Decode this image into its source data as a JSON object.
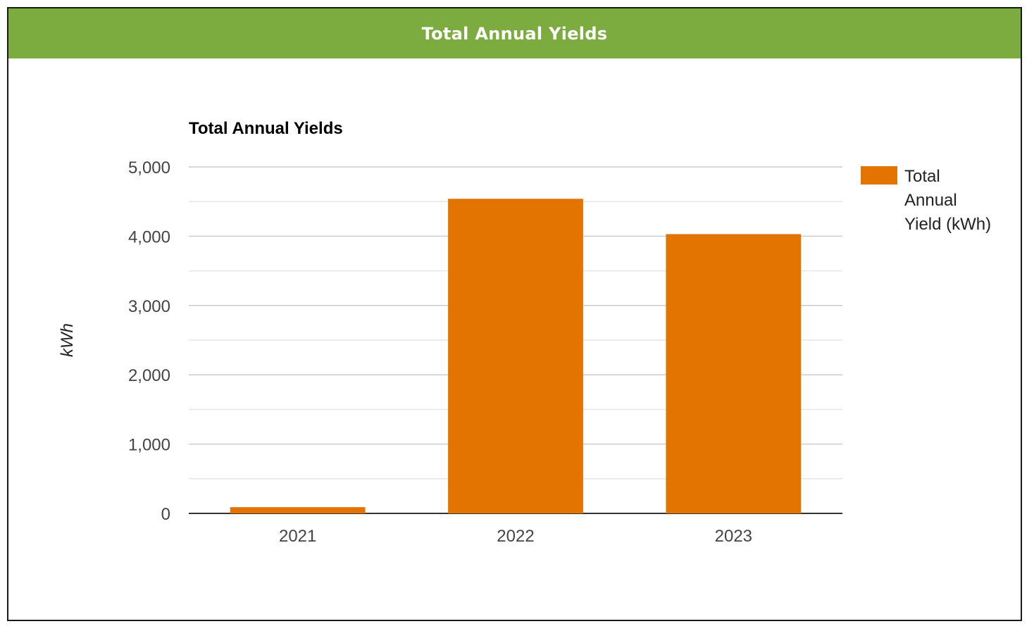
{
  "panel": {
    "header_title": "Total Annual Yields"
  },
  "colors": {
    "header_bg": "#7cab40",
    "bar": "#e37402",
    "grid_major": "#cccccc",
    "grid_minor": "#e6e6e6",
    "baseline": "#333333"
  },
  "chart_data": {
    "type": "bar",
    "title": "Total Annual Yields",
    "xlabel": "",
    "ylabel": "kWh",
    "categories": [
      "2021",
      "2022",
      "2023"
    ],
    "series": [
      {
        "name": "Total Annual Yield (kWh)",
        "legend_lines": [
          "Total",
          "Annual",
          "Yield (kWh)"
        ],
        "values": [
          90,
          4540,
          4030
        ]
      }
    ],
    "ylim": [
      0,
      5000
    ],
    "yticks": [
      0,
      1000,
      2000,
      3000,
      4000,
      5000
    ],
    "ytick_labels": [
      "0",
      "1,000",
      "2,000",
      "3,000",
      "4,000",
      "5,000"
    ],
    "minor_gridlines": true,
    "legend_position": "right"
  }
}
